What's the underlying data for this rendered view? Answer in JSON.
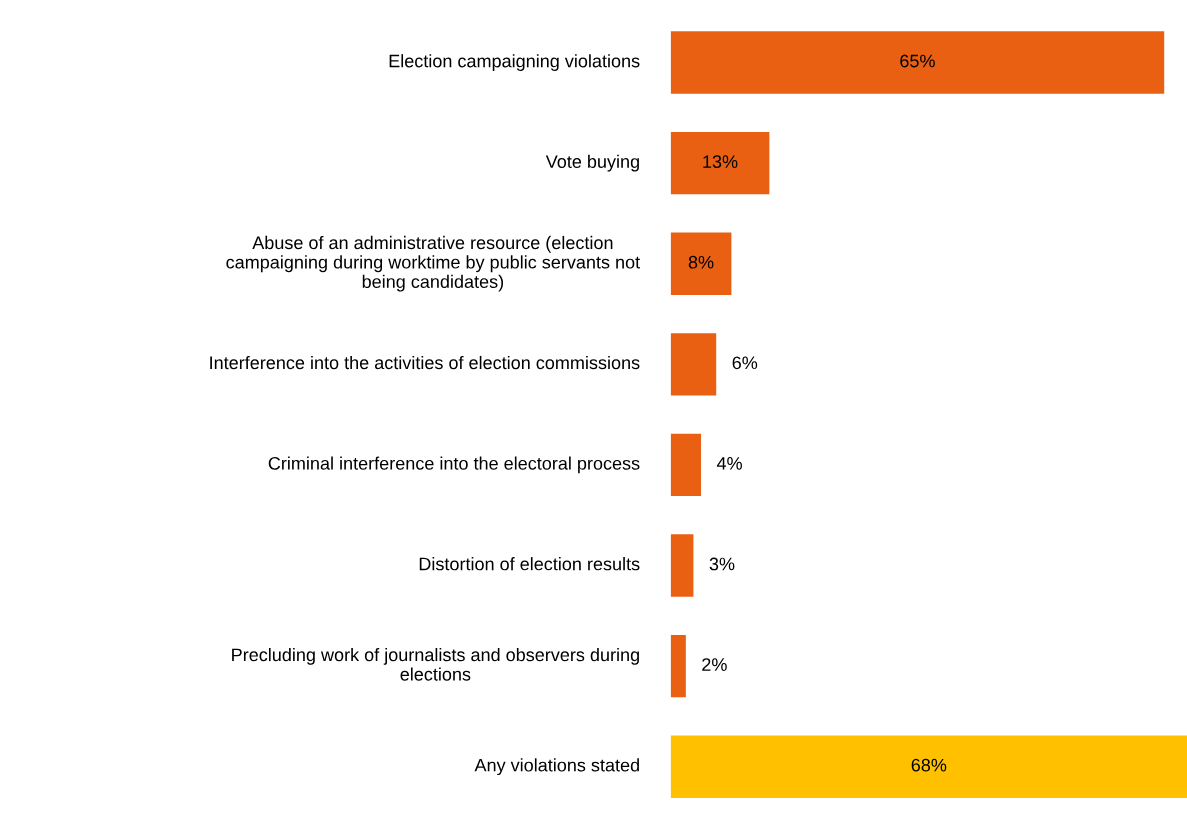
{
  "chart_data": {
    "type": "bar",
    "orientation": "horizontal",
    "categories": [
      "Election campaigning violations",
      "Vote buying",
      "Abuse of an administrative resource (election\ncampaigning during worktime by public servants not\nbeing candidates)",
      "Interference into the activities of election commissions",
      "Criminal interference into the electoral process",
      "Distortion of election results",
      "Precluding work of journalists and observers during\nelections",
      "Any violations stated"
    ],
    "values": [
      65,
      13,
      8,
      6,
      4,
      3,
      2,
      68
    ],
    "colors": [
      "#e96013",
      "#e96013",
      "#e96013",
      "#e96013",
      "#e96013",
      "#e96013",
      "#e96013",
      "#ffc000"
    ],
    "value_labels": [
      "65%",
      "13%",
      "8%",
      "6%",
      "4%",
      "3%",
      "2%",
      "68%"
    ]
  }
}
